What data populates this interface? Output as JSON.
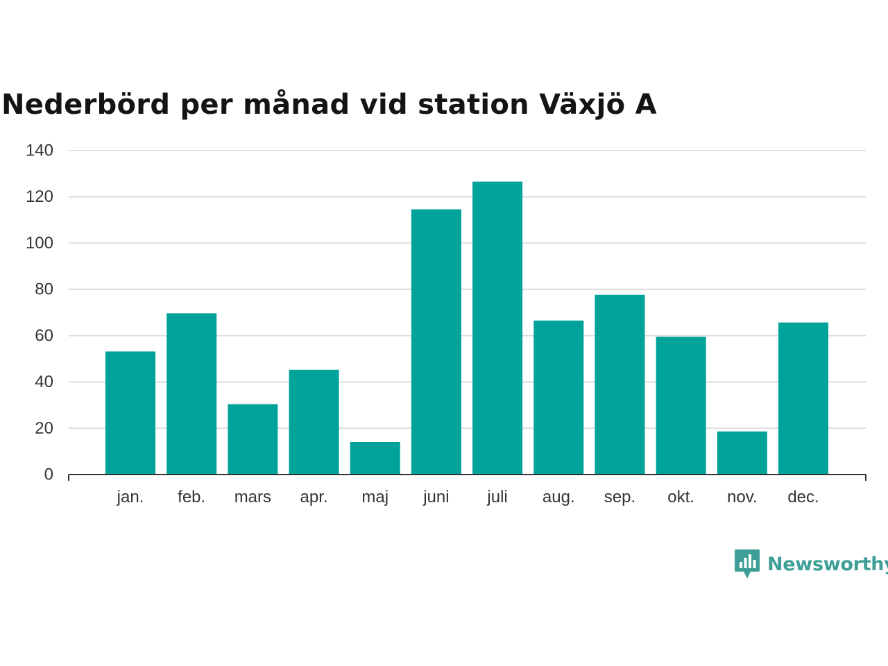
{
  "chart_data": {
    "type": "bar",
    "title": "Nederbörd per månad vid station Växjö A",
    "xlabel": "",
    "ylabel": "",
    "categories": [
      "jan.",
      "feb.",
      "mars",
      "apr.",
      "maj",
      "juni",
      "juli",
      "aug.",
      "sep.",
      "okt.",
      "nov.",
      "dec."
    ],
    "values": [
      53.2,
      69.7,
      30.4,
      45.3,
      14.1,
      114.6,
      126.6,
      66.5,
      77.7,
      59.5,
      18.6,
      65.7
    ],
    "ylim": [
      0,
      140
    ],
    "yticks": [
      0,
      20,
      40,
      60,
      80,
      100,
      120,
      140
    ],
    "grid": true,
    "legend": "none",
    "bar_color": "#00a39a"
  },
  "brand": {
    "name": "Newsworthy",
    "icon": "newsworthy-logo-icon",
    "color": "#3f9f96"
  }
}
